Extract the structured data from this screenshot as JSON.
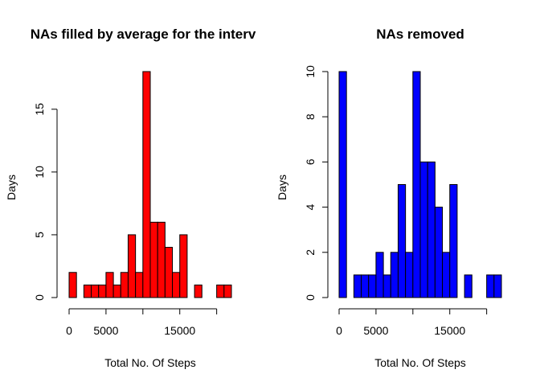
{
  "chart_data": [
    {
      "type": "bar",
      "title": "NAs filled by average for the interv",
      "xlabel": "Total No. Of Steps",
      "ylabel": "Days",
      "color": "#ff0000",
      "bin_width": 1000,
      "bins_start": [
        0,
        1000,
        2000,
        3000,
        4000,
        5000,
        6000,
        7000,
        8000,
        9000,
        10000,
        11000,
        12000,
        13000,
        14000,
        15000,
        16000,
        17000,
        18000,
        19000,
        20000,
        21000
      ],
      "values": [
        2,
        0,
        1,
        1,
        1,
        2,
        1,
        2,
        5,
        2,
        18,
        6,
        6,
        4,
        2,
        5,
        0,
        1,
        0,
        0,
        1,
        1
      ],
      "xlim": [
        0,
        22000
      ],
      "ylim": [
        0,
        18
      ],
      "x_ticks": [
        0,
        5000,
        10000,
        15000,
        20000
      ],
      "x_tick_labels": [
        "0",
        "5000",
        "",
        "15000",
        ""
      ],
      "y_ticks": [
        0,
        5,
        10,
        15
      ],
      "y_tick_labels": [
        "0",
        "5",
        "10",
        "15"
      ]
    },
    {
      "type": "bar",
      "title": "NAs removed",
      "xlabel": "Total No. Of Steps",
      "ylabel": "Days",
      "color": "#0000ff",
      "bin_width": 1000,
      "bins_start": [
        0,
        1000,
        2000,
        3000,
        4000,
        5000,
        6000,
        7000,
        8000,
        9000,
        10000,
        11000,
        12000,
        13000,
        14000,
        15000,
        16000,
        17000,
        18000,
        19000,
        20000,
        21000
      ],
      "values": [
        10,
        0,
        1,
        1,
        1,
        2,
        1,
        2,
        5,
        2,
        10,
        6,
        6,
        4,
        2,
        5,
        0,
        1,
        0,
        0,
        1,
        1
      ],
      "xlim": [
        0,
        22000
      ],
      "ylim": [
        0,
        10
      ],
      "x_ticks": [
        0,
        5000,
        10000,
        15000,
        20000
      ],
      "x_tick_labels": [
        "0",
        "5000",
        "",
        "15000",
        ""
      ],
      "y_ticks": [
        0,
        2,
        4,
        6,
        8,
        10
      ],
      "y_tick_labels": [
        "0",
        "2",
        "4",
        "6",
        "8",
        "10"
      ]
    }
  ]
}
